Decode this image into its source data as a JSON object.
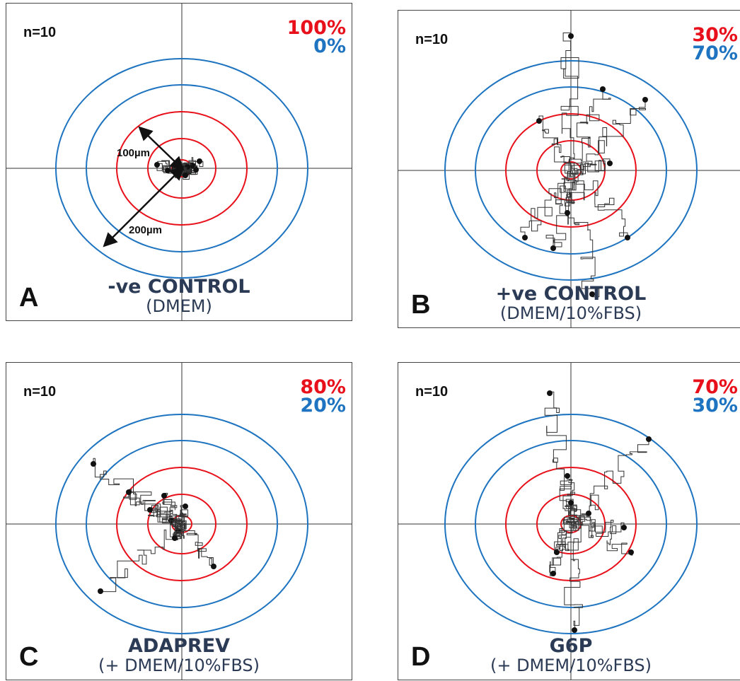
{
  "chart_data": [
    {
      "type": "scatter",
      "panel_letter": "A",
      "n_label": "n=10",
      "red_pct": "100%",
      "blue_pct": "0%",
      "title": "-ve CONTROL",
      "subtitle": "(DMEM)",
      "annotations": [
        "100µm",
        "200µm"
      ],
      "ring_colors": {
        "inner": "#e8101a",
        "outer": "#1e74c0"
      },
      "endpoints": [
        [
          -35,
          5
        ],
        [
          25,
          10
        ],
        [
          10,
          -5
        ],
        [
          20,
          -2
        ],
        [
          -5,
          -8
        ],
        [
          15,
          4
        ],
        [
          -10,
          0
        ],
        [
          8,
          2
        ],
        [
          -20,
          -3
        ],
        [
          5,
          -10
        ]
      ]
    },
    {
      "type": "scatter",
      "panel_letter": "B",
      "n_label": "n=10",
      "red_pct": "30%",
      "blue_pct": "70%",
      "title": "+ve CONTROL",
      "subtitle": "(DMEM/10%FBS)",
      "ring_colors": {
        "inner": "#e8101a",
        "outer": "#1e74c0"
      },
      "endpoints": [
        [
          0,
          190
        ],
        [
          45,
          115
        ],
        [
          105,
          100
        ],
        [
          -45,
          70
        ],
        [
          55,
          10
        ],
        [
          -65,
          -95
        ],
        [
          -25,
          -110
        ],
        [
          80,
          -95
        ],
        [
          30,
          -175
        ],
        [
          -5,
          -60
        ]
      ]
    },
    {
      "type": "scatter",
      "panel_letter": "C",
      "n_label": "n=10",
      "red_pct": "80%",
      "blue_pct": "20%",
      "title": "ADAPREV",
      "subtitle": "(+ DMEM/10%FBS)",
      "ring_colors": {
        "inner": "#e8101a",
        "outer": "#1e74c0"
      },
      "endpoints": [
        [
          -125,
          85
        ],
        [
          -75,
          45
        ],
        [
          -25,
          40
        ],
        [
          -15,
          5
        ],
        [
          -5,
          -10
        ],
        [
          -45,
          20
        ],
        [
          -115,
          -95
        ],
        [
          45,
          -60
        ],
        [
          5,
          25
        ],
        [
          -10,
          -20
        ]
      ]
    },
    {
      "type": "scatter",
      "panel_letter": "D",
      "n_label": "n=10",
      "red_pct": "70%",
      "blue_pct": "30%",
      "title": "G6P",
      "subtitle": "(+ DMEM/10%FBS)",
      "ring_colors": {
        "inner": "#e8101a",
        "outer": "#1e74c0"
      },
      "endpoints": [
        [
          -30,
          185
        ],
        [
          110,
          120
        ],
        [
          -5,
          68
        ],
        [
          0,
          30
        ],
        [
          75,
          -5
        ],
        [
          25,
          15
        ],
        [
          -20,
          -40
        ],
        [
          85,
          -40
        ],
        [
          -25,
          -70
        ],
        [
          5,
          -150
        ]
      ]
    }
  ]
}
